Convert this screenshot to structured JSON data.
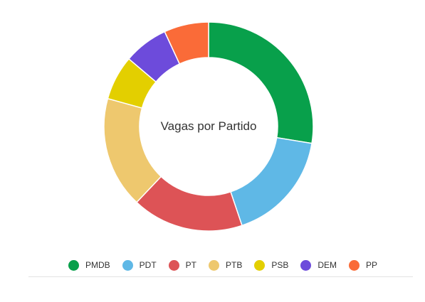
{
  "chart_data": {
    "type": "pie",
    "title": "Vagas por Partido",
    "categories": [
      "PMDB",
      "PDT",
      "PT",
      "PTB",
      "PSB",
      "DEM",
      "PP"
    ],
    "values": [
      8,
      5,
      5,
      5,
      2,
      2,
      2
    ],
    "colors": [
      "#08a04b",
      "#5fb8e6",
      "#dd5356",
      "#eec86e",
      "#e3cf00",
      "#6d4bdb",
      "#fa6b38"
    ],
    "donut": true,
    "legend_position": "bottom"
  }
}
